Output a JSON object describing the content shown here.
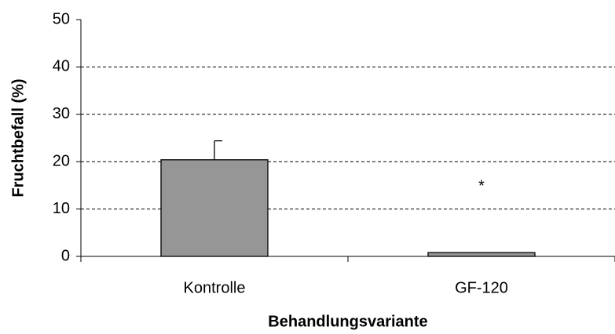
{
  "chart_data": {
    "type": "bar",
    "categories": [
      "Kontrolle",
      "GF-120"
    ],
    "values": [
      20.4,
      0.8
    ],
    "errors": [
      4,
      null
    ],
    "color": "#969696",
    "xlabel": "Behandlungsvariante",
    "ylabel": "Fruchtbefall (%)",
    "annotations": [
      {
        "text": "*",
        "category": 1
      }
    ],
    "ylim": [
      0,
      50
    ],
    "yticks": [
      0,
      10,
      20,
      30,
      40,
      50
    ],
    "grid": true
  }
}
